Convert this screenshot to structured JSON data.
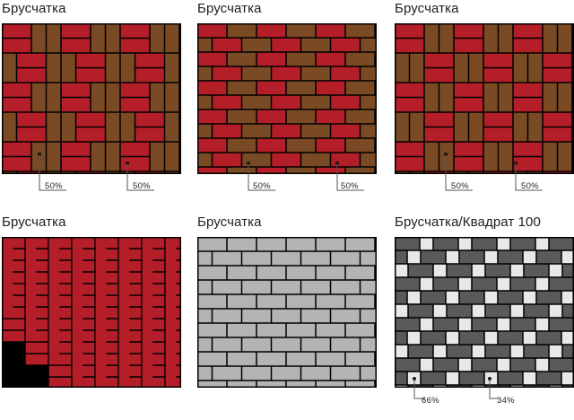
{
  "colors": {
    "red": "#b41e28",
    "brown": "#7a4a25",
    "light_gray": "#b4b4b7",
    "dark_gray": "#5a5a5c",
    "white_block": "#e8e8ea",
    "joint": "#000000"
  },
  "panels": [
    {
      "title": "Брусчатка",
      "pattern": "basketweave-mixed",
      "labels": [
        "50%",
        "50%"
      ]
    },
    {
      "title": "Брусчатка",
      "pattern": "running-bond-mixed",
      "labels": [
        "50%",
        "50%"
      ]
    },
    {
      "title": "Брусчатка",
      "pattern": "parquet-mixed",
      "labels": [
        "50%",
        "50%"
      ]
    },
    {
      "title": "Брусчатка",
      "pattern": "herringbone-red"
    },
    {
      "title": "Брусчатка",
      "pattern": "running-bond-gray"
    },
    {
      "title": "Брусчатка/Квадрат 100",
      "pattern": "running-bond-with-squares",
      "labels": [
        "66%",
        "34%"
      ]
    }
  ]
}
